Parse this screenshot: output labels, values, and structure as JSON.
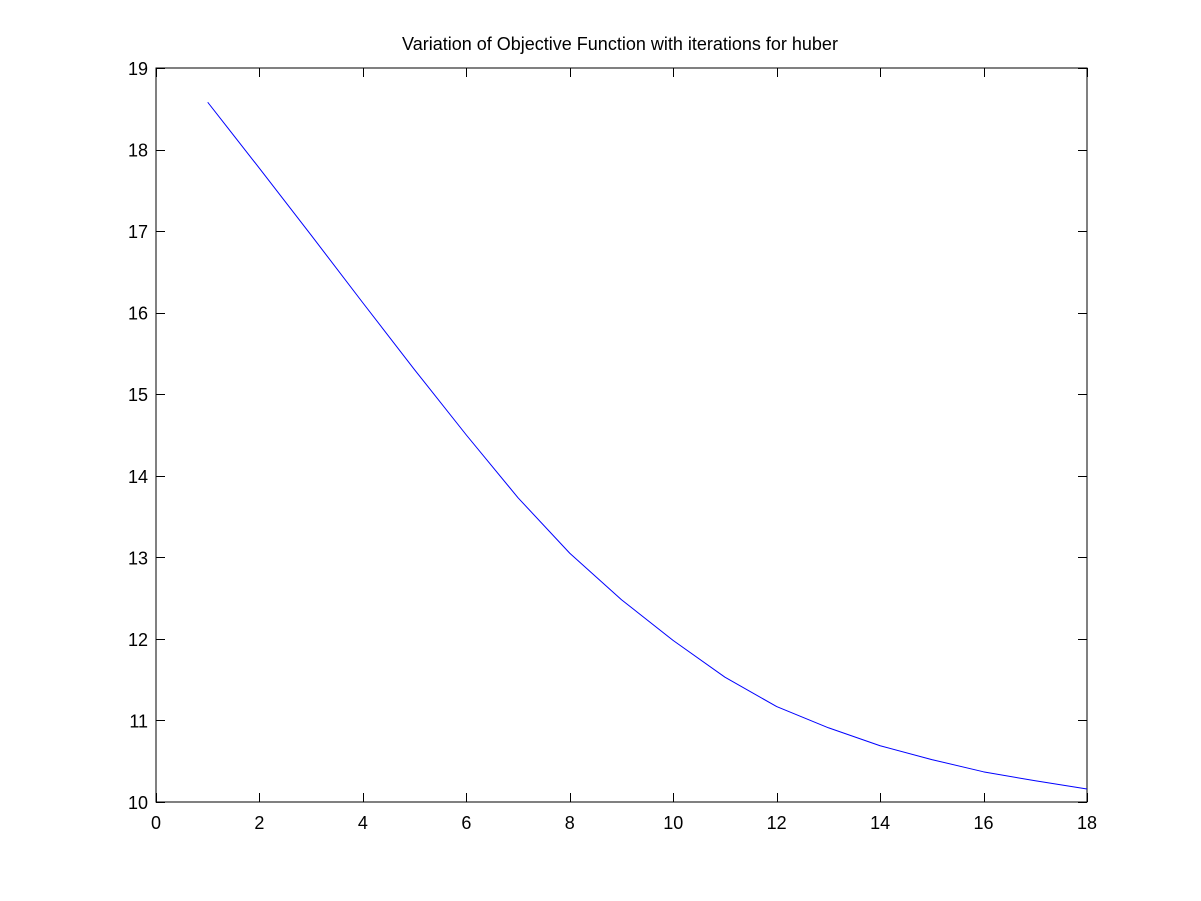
{
  "chart_data": {
    "type": "line",
    "title": "Variation of Objective Function with iterations for huber",
    "xlabel": "",
    "ylabel": "",
    "xlim": [
      0,
      18
    ],
    "ylim": [
      10,
      19
    ],
    "xticks": [
      0,
      2,
      4,
      6,
      8,
      10,
      12,
      14,
      16,
      18
    ],
    "yticks": [
      10,
      11,
      12,
      13,
      14,
      15,
      16,
      17,
      18,
      19
    ],
    "grid": false,
    "legend": "none",
    "series": [
      {
        "color": "#0000ff",
        "x": [
          1,
          2,
          3,
          4,
          5,
          6,
          7,
          8,
          9,
          10,
          11,
          12,
          13,
          14,
          15,
          16,
          17,
          18
        ],
        "y": [
          18.58,
          17.77,
          16.95,
          16.12,
          15.3,
          14.5,
          13.73,
          13.05,
          12.48,
          11.98,
          11.53,
          11.17,
          10.91,
          10.69,
          10.52,
          10.37,
          10.26,
          10.16
        ]
      }
    ]
  }
}
